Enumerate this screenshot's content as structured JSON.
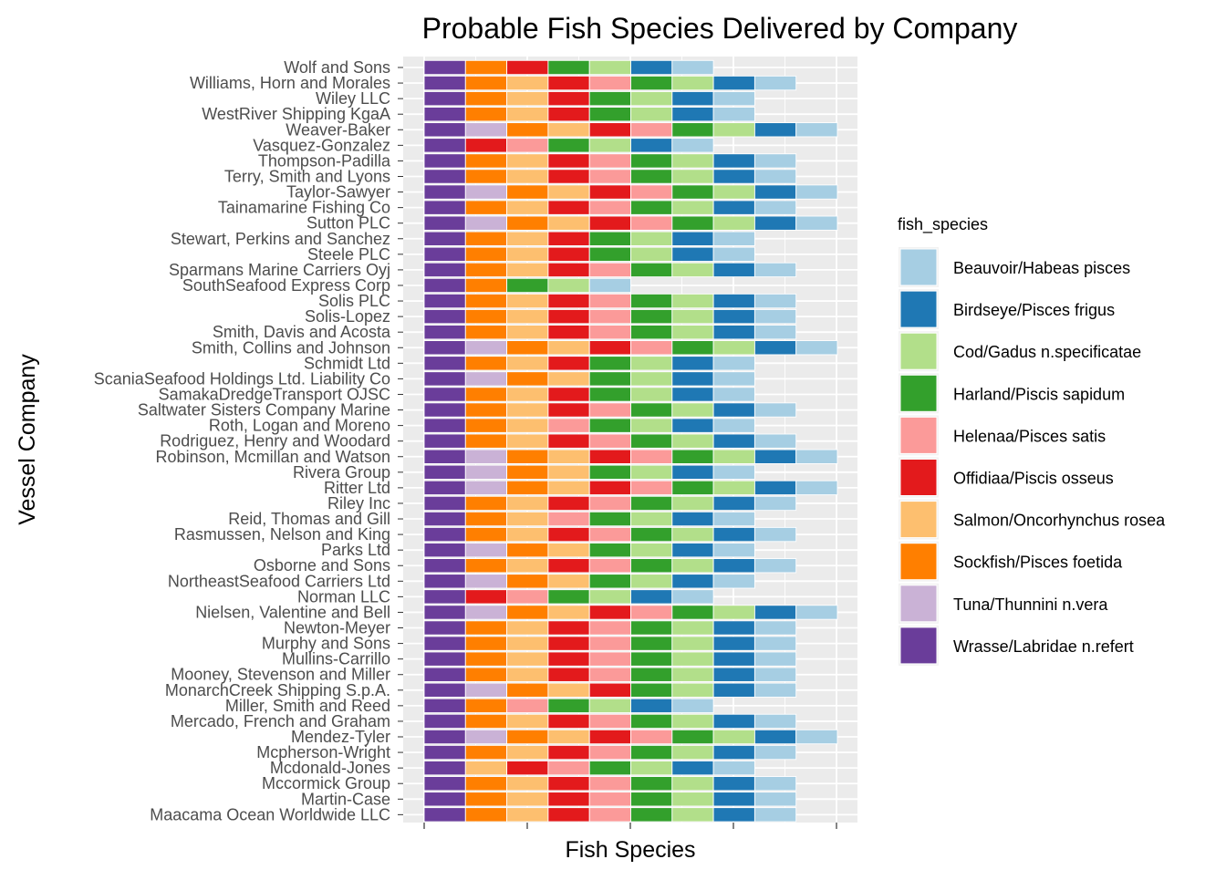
{
  "chart_data": {
    "type": "bar",
    "orientation": "horizontal-stacked",
    "title": "Probable Fish Species Delivered by Company",
    "xlabel": "Fish Species",
    "ylabel": "Vessel Company",
    "grid": true,
    "legend_placement": "right",
    "legend": {
      "title": "fish_species",
      "entries": [
        {
          "name": "Beauvoir/Habeas pisces",
          "color": "#a6cee3"
        },
        {
          "name": "Birdseye/Pisces frigus",
          "color": "#1f78b4"
        },
        {
          "name": "Cod/Gadus n.specificatae",
          "color": "#b2df8a"
        },
        {
          "name": "Harland/Piscis sapidum",
          "color": "#33a02c"
        },
        {
          "name": "Helenaa/Pisces satis",
          "color": "#fb9a99"
        },
        {
          "name": "Offidiaa/Piscis osseus",
          "color": "#e31a1c"
        },
        {
          "name": "Salmon/Oncorhynchus rosea",
          "color": "#fdbf6f"
        },
        {
          "name": "Sockfish/Pisces foetida",
          "color": "#ff7f00"
        },
        {
          "name": "Tuna/Thunnini n.vera",
          "color": "#cab2d6"
        },
        {
          "name": "Wrasse/Labridae n.refert",
          "color": "#6a3d9a"
        }
      ]
    },
    "companies": [
      {
        "name": "Wolf and Sons",
        "species": [
          9,
          7,
          5,
          3,
          2,
          1,
          0
        ]
      },
      {
        "name": "Williams, Horn and Morales",
        "species": [
          9,
          7,
          6,
          5,
          4,
          3,
          2,
          1,
          0
        ]
      },
      {
        "name": "Wiley LLC",
        "species": [
          9,
          7,
          6,
          5,
          3,
          2,
          1,
          0
        ]
      },
      {
        "name": "WestRiver Shipping KgaA",
        "species": [
          9,
          7,
          6,
          5,
          3,
          2,
          1,
          0
        ]
      },
      {
        "name": "Weaver-Baker",
        "species": [
          9,
          8,
          7,
          6,
          5,
          4,
          3,
          2,
          1,
          0
        ]
      },
      {
        "name": "Vasquez-Gonzalez",
        "species": [
          9,
          5,
          4,
          3,
          2,
          1,
          0
        ]
      },
      {
        "name": "Thompson-Padilla",
        "species": [
          9,
          7,
          6,
          5,
          4,
          3,
          2,
          1,
          0
        ]
      },
      {
        "name": "Terry, Smith and Lyons",
        "species": [
          9,
          7,
          6,
          5,
          4,
          3,
          2,
          1,
          0
        ]
      },
      {
        "name": "Taylor-Sawyer",
        "species": [
          9,
          8,
          7,
          6,
          5,
          4,
          3,
          2,
          1,
          0
        ]
      },
      {
        "name": "Tainamarine Fishing Co",
        "species": [
          9,
          7,
          6,
          5,
          4,
          3,
          2,
          1,
          0
        ]
      },
      {
        "name": "Sutton PLC",
        "species": [
          9,
          8,
          7,
          6,
          5,
          4,
          3,
          2,
          1,
          0
        ]
      },
      {
        "name": "Stewart, Perkins and Sanchez",
        "species": [
          9,
          7,
          6,
          5,
          3,
          2,
          1,
          0
        ]
      },
      {
        "name": "Steele PLC",
        "species": [
          9,
          7,
          6,
          5,
          3,
          2,
          1,
          0
        ]
      },
      {
        "name": "Sparmans Marine Carriers Oyj",
        "species": [
          9,
          7,
          6,
          5,
          4,
          3,
          2,
          1,
          0
        ]
      },
      {
        "name": "SouthSeafood Express Corp",
        "species": [
          9,
          7,
          3,
          2,
          0
        ]
      },
      {
        "name": "Solis PLC",
        "species": [
          9,
          7,
          6,
          5,
          4,
          3,
          2,
          1,
          0
        ]
      },
      {
        "name": "Solis-Lopez",
        "species": [
          9,
          7,
          6,
          5,
          4,
          3,
          2,
          1,
          0
        ]
      },
      {
        "name": "Smith, Davis and Acosta",
        "species": [
          9,
          7,
          6,
          5,
          4,
          3,
          2,
          1,
          0
        ]
      },
      {
        "name": "Smith, Collins and Johnson",
        "species": [
          9,
          8,
          7,
          6,
          5,
          4,
          3,
          2,
          1,
          0
        ]
      },
      {
        "name": "Schmidt Ltd",
        "species": [
          9,
          7,
          6,
          5,
          3,
          2,
          1,
          0
        ]
      },
      {
        "name": "ScaniaSeafood Holdings Ltd. Liability Co",
        "species": [
          9,
          8,
          7,
          6,
          3,
          2,
          1,
          0
        ]
      },
      {
        "name": "SamakaDredgeTransport OJSC",
        "species": [
          9,
          7,
          6,
          5,
          3,
          2,
          1,
          0
        ]
      },
      {
        "name": "Saltwater Sisters Company Marine",
        "species": [
          9,
          7,
          6,
          5,
          4,
          3,
          2,
          1,
          0
        ]
      },
      {
        "name": "Roth, Logan and Moreno",
        "species": [
          9,
          7,
          6,
          4,
          3,
          2,
          1,
          0
        ]
      },
      {
        "name": "Rodriguez, Henry and Woodard",
        "species": [
          9,
          7,
          6,
          5,
          4,
          3,
          2,
          1,
          0
        ]
      },
      {
        "name": "Robinson, Mcmillan and Watson",
        "species": [
          9,
          8,
          7,
          6,
          5,
          4,
          3,
          2,
          1,
          0
        ]
      },
      {
        "name": "Rivera Group",
        "species": [
          9,
          8,
          7,
          6,
          3,
          2,
          1,
          0
        ]
      },
      {
        "name": "Ritter Ltd",
        "species": [
          9,
          8,
          7,
          6,
          5,
          4,
          3,
          2,
          1,
          0
        ]
      },
      {
        "name": "Riley Inc",
        "species": [
          9,
          7,
          6,
          5,
          4,
          3,
          2,
          1,
          0
        ]
      },
      {
        "name": "Reid, Thomas and Gill",
        "species": [
          9,
          7,
          6,
          4,
          3,
          2,
          1,
          0
        ]
      },
      {
        "name": "Rasmussen, Nelson and King",
        "species": [
          9,
          7,
          6,
          5,
          4,
          3,
          2,
          1,
          0
        ]
      },
      {
        "name": "Parks Ltd",
        "species": [
          9,
          8,
          7,
          6,
          3,
          2,
          1,
          0
        ]
      },
      {
        "name": "Osborne and Sons",
        "species": [
          9,
          7,
          6,
          5,
          4,
          3,
          2,
          1,
          0
        ]
      },
      {
        "name": "NortheastSeafood Carriers Ltd",
        "species": [
          9,
          8,
          7,
          6,
          3,
          2,
          1,
          0
        ]
      },
      {
        "name": "Norman LLC",
        "species": [
          9,
          5,
          4,
          3,
          2,
          1,
          0
        ]
      },
      {
        "name": "Nielsen, Valentine and Bell",
        "species": [
          9,
          8,
          7,
          6,
          5,
          4,
          3,
          2,
          1,
          0
        ]
      },
      {
        "name": "Newton-Meyer",
        "species": [
          9,
          7,
          6,
          5,
          4,
          3,
          2,
          1,
          0
        ]
      },
      {
        "name": "Murphy and Sons",
        "species": [
          9,
          7,
          6,
          5,
          4,
          3,
          2,
          1,
          0
        ]
      },
      {
        "name": "Mullins-Carrillo",
        "species": [
          9,
          7,
          6,
          5,
          4,
          3,
          2,
          1,
          0
        ]
      },
      {
        "name": "Mooney, Stevenson and Miller",
        "species": [
          9,
          7,
          6,
          5,
          4,
          3,
          2,
          1,
          0
        ]
      },
      {
        "name": "MonarchCreek Shipping S.p.A.",
        "species": [
          9,
          8,
          7,
          6,
          5,
          3,
          2,
          1,
          0
        ]
      },
      {
        "name": "Miller, Smith and Reed",
        "species": [
          9,
          7,
          4,
          3,
          2,
          1,
          0
        ]
      },
      {
        "name": "Mercado, French and Graham",
        "species": [
          9,
          7,
          6,
          5,
          4,
          3,
          2,
          1,
          0
        ]
      },
      {
        "name": "Mendez-Tyler",
        "species": [
          9,
          8,
          7,
          6,
          5,
          4,
          3,
          2,
          1,
          0
        ]
      },
      {
        "name": "Mcpherson-Wright",
        "species": [
          9,
          7,
          6,
          5,
          4,
          3,
          2,
          1,
          0
        ]
      },
      {
        "name": "Mcdonald-Jones",
        "species": [
          9,
          6,
          5,
          4,
          3,
          2,
          1,
          0
        ]
      },
      {
        "name": "Mccormick Group",
        "species": [
          9,
          7,
          6,
          5,
          4,
          3,
          2,
          1,
          0
        ]
      },
      {
        "name": "Martin-Case",
        "species": [
          9,
          7,
          6,
          5,
          4,
          3,
          2,
          1,
          0
        ]
      },
      {
        "name": "Maacama Ocean Worldwide LLC",
        "species": [
          9,
          7,
          6,
          5,
          4,
          3,
          2,
          1,
          0
        ]
      }
    ]
  }
}
